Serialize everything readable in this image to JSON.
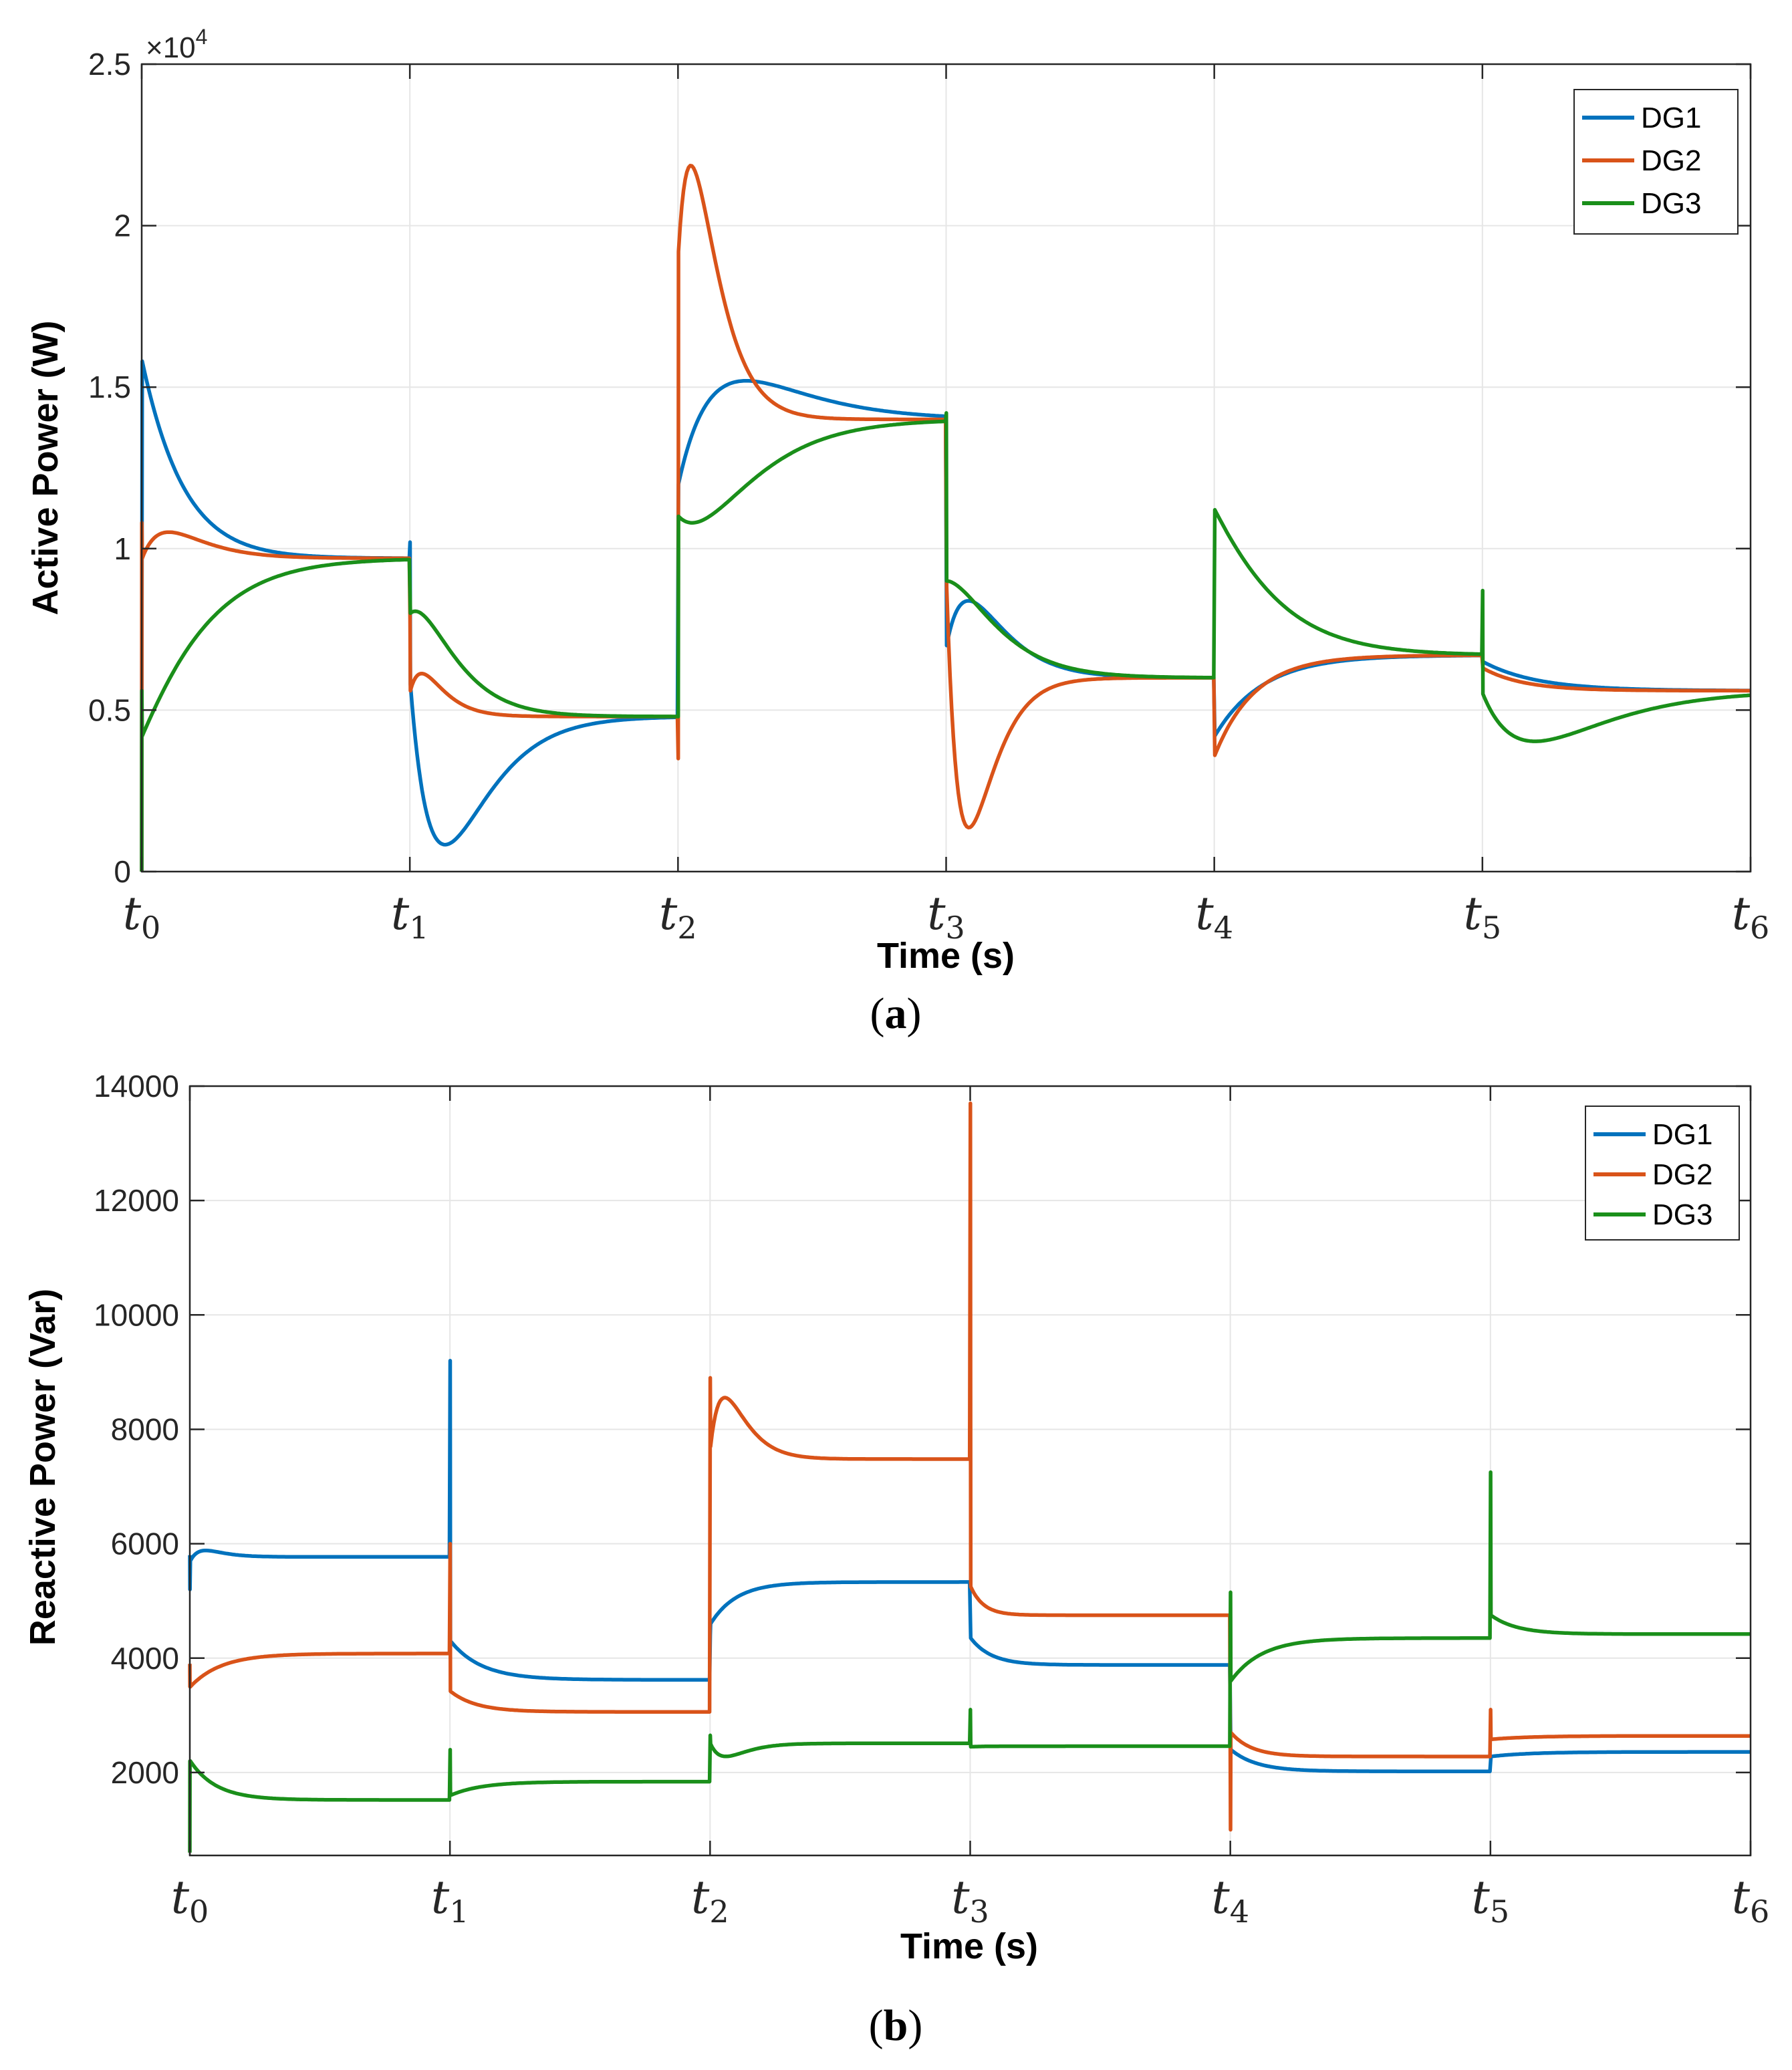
{
  "colors": {
    "DG1": "#0072BD",
    "DG2": "#D95319",
    "DG3": "#1A8F1A",
    "grid": "#E6E6E6",
    "axis": "#262626"
  },
  "chart_data": [
    {
      "type": "line",
      "caption_letter": "a",
      "ylabel": "Active Power (W)",
      "xlabel": "Time (s)",
      "x_ticks": [
        {
          "base": "t",
          "sub": "0"
        },
        {
          "base": "t",
          "sub": "1"
        },
        {
          "base": "t",
          "sub": "2"
        },
        {
          "base": "t",
          "sub": "3"
        },
        {
          "base": "t",
          "sub": "4"
        },
        {
          "base": "t",
          "sub": "5"
        },
        {
          "base": "t",
          "sub": "6"
        }
      ],
      "xlim": [
        0,
        6
      ],
      "ylim": [
        0,
        2.5
      ],
      "y_ticks": [
        "0",
        "0.5",
        "1",
        "1.5",
        "2",
        "2.5"
      ],
      "y_exponent_base": "×10",
      "y_exponent_power": "4",
      "legend": [
        "DG1",
        "DG2",
        "DG3"
      ],
      "series": [
        {
          "name": "DG1",
          "start_spike": [
            0,
            0.62
          ],
          "segments": [
            {
              "t": 0,
              "start": 1.58,
              "final": 0.97,
              "peak": 0.06,
              "tau": 0.12
            },
            {
              "t": 1,
              "start": 0.58,
              "final": 0.48,
              "peak": -0.48,
              "tau": 0.12,
              "spike": 1.02
            },
            {
              "t": 2,
              "start": 1.2,
              "final": 1.4,
              "peak": 0.2,
              "tau": 0.18,
              "spike": 1.05
            },
            {
              "t": 3,
              "start": 0.7,
              "final": 0.6,
              "peak": 0.22,
              "tau": 0.1
            },
            {
              "t": 4,
              "start": 0.42,
              "final": 0.67,
              "peak": 0.0,
              "tau": 0.18,
              "spike": 0.48
            },
            {
              "t": 5,
              "start": 0.65,
              "final": 0.56,
              "peak": 0.0,
              "tau": 0.2,
              "end": 0.56
            }
          ]
        },
        {
          "name": "DG2",
          "start_spike": [
            0,
            1.08
          ],
          "segments": [
            {
              "t": 0,
              "start": 0.97,
              "final": 0.97,
              "peak": 0.09,
              "tau": 0.1
            },
            {
              "t": 1,
              "start": 0.56,
              "final": 0.48,
              "peak": 0.11,
              "tau": 0.06,
              "spike": 0.78
            },
            {
              "t": 2,
              "start": 1.92,
              "final": 1.4,
              "peak": 0.62,
              "tau": 0.07,
              "spike": 0.35
            },
            {
              "t": 3,
              "start": 0.88,
              "final": 0.6,
              "peak": -0.62,
              "tau": 0.07
            },
            {
              "t": 4,
              "start": 0.36,
              "final": 0.67,
              "peak": 0.0,
              "tau": 0.15
            },
            {
              "t": 5,
              "start": 0.63,
              "final": 0.56,
              "peak": 0.0,
              "tau": 0.15,
              "end": 0.56
            }
          ]
        },
        {
          "name": "DG3",
          "start_spike": [
            0,
            0.56
          ],
          "segments": [
            {
              "t": 0,
              "start": 0.42,
              "final": 0.97,
              "peak": -0.1,
              "tau": 0.16
            },
            {
              "t": 1,
              "start": 0.8,
              "final": 0.48,
              "peak": 0.16,
              "tau": 0.1
            },
            {
              "t": 2,
              "start": 1.1,
              "final": 1.4,
              "peak": -0.18,
              "tau": 0.16,
              "spike": 0.48
            },
            {
              "t": 3,
              "start": 0.9,
              "final": 0.6,
              "peak": 0.12,
              "tau": 0.12,
              "spike": 1.42
            },
            {
              "t": 4,
              "start": 1.12,
              "final": 0.67,
              "peak": 0.08,
              "tau": 0.16
            },
            {
              "t": 5,
              "start": 0.55,
              "final": 0.56,
              "peak": -0.17,
              "tau": 0.2,
              "spike": 0.87,
              "end": 0.56
            }
          ]
        }
      ]
    },
    {
      "type": "line",
      "caption_letter": "b",
      "ylabel": "Reactive Power (Var)",
      "xlabel": "Time (s)",
      "x_ticks": [
        {
          "base": "t",
          "sub": "0"
        },
        {
          "base": "t",
          "sub": "1"
        },
        {
          "base": "t",
          "sub": "2"
        },
        {
          "base": "t",
          "sub": "3"
        },
        {
          "base": "t",
          "sub": "4"
        },
        {
          "base": "t",
          "sub": "5"
        },
        {
          "base": "t",
          "sub": "6"
        }
      ],
      "xlim": [
        0,
        6
      ],
      "ylim": [
        550,
        14000
      ],
      "y_ticks": [
        "2000",
        "4000",
        "6000",
        "8000",
        "10000",
        "12000",
        "14000"
      ],
      "legend": [
        "DG1",
        "DG2",
        "DG3"
      ],
      "series": [
        {
          "name": "DG1",
          "start_spike": [
            5800,
            5200
          ],
          "segments": [
            {
              "t": 0,
              "start": 5700,
              "final": 5770,
              "peak": 150,
              "tau": 0.05
            },
            {
              "t": 1,
              "start": 4300,
              "final": 3620,
              "peak": 0,
              "tau": 0.12,
              "spike": 9200
            },
            {
              "t": 2,
              "start": 4600,
              "final": 5330,
              "peak": 0,
              "tau": 0.1,
              "spike": 4400
            },
            {
              "t": 3,
              "start": 4350,
              "final": 3880,
              "peak": 0,
              "tau": 0.08
            },
            {
              "t": 4,
              "start": 2400,
              "final": 2020,
              "peak": 0,
              "tau": 0.1
            },
            {
              "t": 5,
              "start": 2280,
              "final": 2360,
              "peak": 0,
              "tau": 0.15,
              "end": 2360
            }
          ]
        },
        {
          "name": "DG2",
          "start_spike": [
            3900,
            3500
          ],
          "segments": [
            {
              "t": 0,
              "start": 3500,
              "final": 4080,
              "peak": 0,
              "tau": 0.12
            },
            {
              "t": 1,
              "start": 3420,
              "final": 3060,
              "peak": 0,
              "tau": 0.1,
              "spike": 6000
            },
            {
              "t": 2,
              "start": 7700,
              "final": 7480,
              "peak": 1100,
              "tau": 0.06,
              "spike": 8900
            },
            {
              "t": 3,
              "start": 5250,
              "final": 4750,
              "peak": 0,
              "tau": 0.05,
              "spike": 13700
            },
            {
              "t": 4,
              "start": 2700,
              "final": 2280,
              "peak": 0,
              "tau": 0.08,
              "spike": 1000
            },
            {
              "t": 5,
              "start": 2580,
              "final": 2640,
              "peak": 0,
              "tau": 0.15,
              "spike": 3100,
              "end": 2640
            }
          ]
        },
        {
          "name": "DG3",
          "start_spike": [
            600,
            2200
          ],
          "segments": [
            {
              "t": 0,
              "start": 2200,
              "final": 1520,
              "peak": 0,
              "tau": 0.1
            },
            {
              "t": 1,
              "start": 1600,
              "final": 1840,
              "peak": 0,
              "tau": 0.12,
              "spike": 2400
            },
            {
              "t": 2,
              "start": 2500,
              "final": 2510,
              "peak": -250,
              "tau": 0.06,
              "spike": 2650
            },
            {
              "t": 3,
              "start": 2450,
              "final": 2460,
              "peak": 0,
              "tau": 0.05,
              "spike": 3100
            },
            {
              "t": 4,
              "start": 3600,
              "final": 4350,
              "peak": 0,
              "tau": 0.12,
              "spike": 5150
            },
            {
              "t": 5,
              "start": 4750,
              "final": 4420,
              "peak": 0,
              "tau": 0.1,
              "spike": 7250,
              "end": 4420
            }
          ]
        }
      ]
    }
  ]
}
